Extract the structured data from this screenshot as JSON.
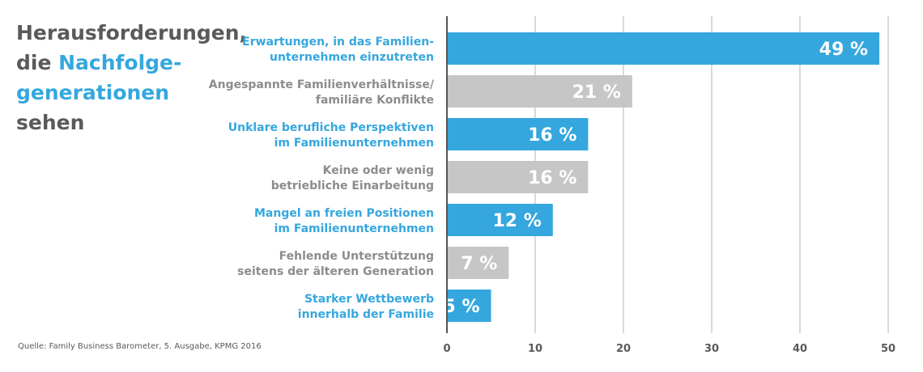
{
  "title": {
    "line1": "Herausforderungen,",
    "line2_plain": "die ",
    "line2_accent": "Nachfolge-",
    "line3_accent": "generationen",
    "line4": "sehen"
  },
  "source": "Quelle: Family Business Barometer, 5. Ausgabe, KPMG 2016",
  "colors": {
    "blue": "#35a7de",
    "gray": "#c6c6c6",
    "text": "#5a5a5a",
    "grid": "#d9d9d9"
  },
  "chart_data": {
    "type": "bar",
    "orientation": "horizontal",
    "categories": [
      [
        "Erwartungen, in das Familien-",
        "unternehmen einzutreten"
      ],
      [
        "Angespannte Familienverhältnisse/",
        "familiäre Konflikte"
      ],
      [
        "Unklare berufliche Perspektiven",
        "im Familienunternehmen"
      ],
      [
        "Keine oder wenig",
        "betriebliche Einarbeitung"
      ],
      [
        "Mangel an freien Positionen",
        "im Familienunternehmen"
      ],
      [
        "Fehlende Unterstützung",
        "seitens der älteren Generation"
      ],
      [
        "Starker Wettbewerb",
        "innerhalb der Familie"
      ]
    ],
    "values": [
      49,
      21,
      16,
      16,
      12,
      7,
      5
    ],
    "labels": [
      "49 %",
      "21 %",
      "16 %",
      "16 %",
      "12 %",
      "7 %",
      "5 %"
    ],
    "bar_colors": [
      "blue",
      "gray",
      "blue",
      "gray",
      "blue",
      "gray",
      "blue"
    ],
    "xlim": [
      0,
      50
    ],
    "xticks": [
      0,
      10,
      20,
      30,
      40,
      50
    ],
    "grid": true,
    "legend": "none"
  }
}
